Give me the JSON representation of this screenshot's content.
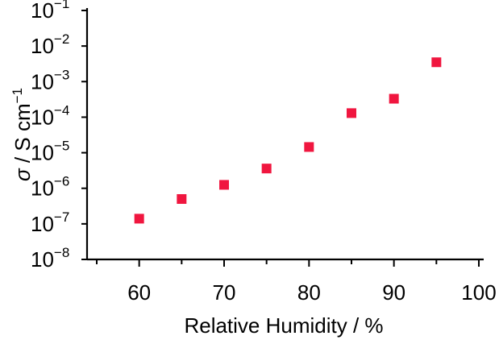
{
  "chart_data": {
    "type": "scatter",
    "title": "",
    "xlabel": "Relative Humidity / %",
    "ylabel": {
      "symbol": "σ",
      "rest": " / S cm",
      "exponent": "−1"
    },
    "xlim": [
      55,
      100
    ],
    "ylim_log10": [
      -8,
      -1
    ],
    "y_scale": "log",
    "grid": false,
    "x_ticks": [
      60,
      70,
      80,
      90,
      100
    ],
    "x_tick_labels": [
      "60",
      "70",
      "80",
      "90",
      "100"
    ],
    "y_ticks_log10": [
      -8,
      -7,
      -6,
      -5,
      -4,
      -3,
      -2,
      -1
    ],
    "y_tick_labels": [
      {
        "base": "10",
        "exp": "−8"
      },
      {
        "base": "10",
        "exp": "−7"
      },
      {
        "base": "10",
        "exp": "−6"
      },
      {
        "base": "10",
        "exp": "−5"
      },
      {
        "base": "10",
        "exp": "−4"
      },
      {
        "base": "10",
        "exp": "−3"
      },
      {
        "base": "10",
        "exp": "−2"
      },
      {
        "base": "10",
        "exp": "−1"
      }
    ],
    "marker_color": "#f0163f",
    "series": [
      {
        "x": [
          60,
          65,
          70,
          75,
          80,
          85,
          90,
          95
        ],
        "y": [
          1.4e-07,
          5e-07,
          1.25e-06,
          3.6e-06,
          1.45e-05,
          0.00013,
          0.00033,
          0.0035
        ]
      }
    ]
  }
}
